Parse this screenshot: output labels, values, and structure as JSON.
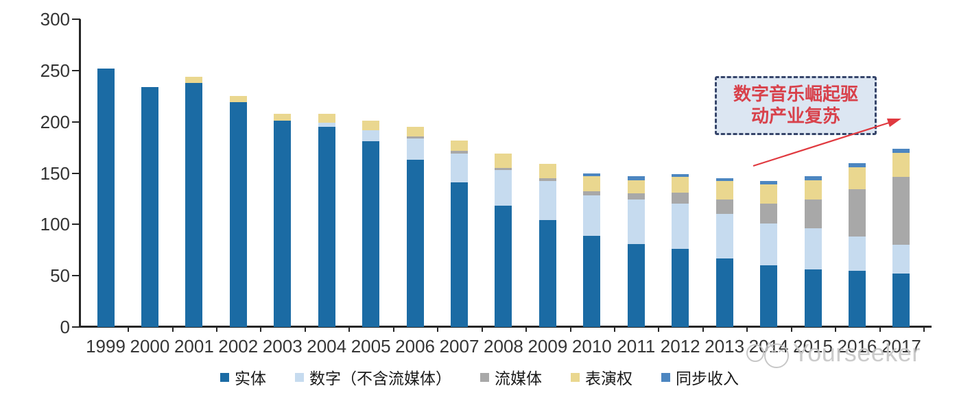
{
  "chart_data": {
    "type": "bar",
    "stacked": true,
    "title": "",
    "xlabel": "",
    "ylabel": "",
    "grid": false,
    "legend_position": "bottom",
    "ylim": [
      0,
      300
    ],
    "yticks": [
      0,
      50,
      100,
      150,
      200,
      250,
      300
    ],
    "categories": [
      "1999",
      "2000",
      "2001",
      "2002",
      "2003",
      "2004",
      "2005",
      "2006",
      "2007",
      "2008",
      "2009",
      "2010",
      "2011",
      "2012",
      "2013",
      "2014",
      "2015",
      "2016",
      "2017"
    ],
    "series": [
      {
        "key": "physical",
        "name": "实体",
        "color": "#1B6BA4",
        "values": [
          252,
          234,
          238,
          219,
          201,
          195,
          181,
          163,
          141,
          118,
          104,
          89,
          81,
          76,
          67,
          60,
          56,
          55,
          52
        ]
      },
      {
        "key": "digital-ex-streaming",
        "name": "数字（不含流媒体）",
        "color": "#C6DBEF",
        "values": [
          0,
          0,
          0,
          0,
          0,
          4,
          11,
          21,
          28,
          35,
          38,
          39,
          43,
          44,
          43,
          41,
          40,
          33,
          28
        ]
      },
      {
        "key": "streaming",
        "name": "流媒体",
        "color": "#A8A8A8",
        "values": [
          0,
          0,
          0,
          0,
          0,
          0,
          0,
          2,
          3,
          2,
          3,
          4,
          6,
          11,
          14,
          19,
          28,
          46,
          66
        ]
      },
      {
        "key": "performance-rights",
        "name": "表演权",
        "color": "#EAD78F",
        "values": [
          0,
          0,
          6,
          6,
          7,
          9,
          9,
          9,
          10,
          14,
          14,
          15,
          13,
          15,
          18,
          19,
          19,
          22,
          24
        ]
      },
      {
        "key": "sync",
        "name": "同步收入",
        "color": "#4C86C0",
        "values": [
          0,
          0,
          0,
          0,
          0,
          0,
          0,
          0,
          0,
          0,
          0,
          3,
          4,
          3,
          3,
          3,
          4,
          4,
          4
        ]
      }
    ]
  },
  "annotation": {
    "line1": "数字音乐崛起驱",
    "line2": "动产业复苏"
  },
  "watermark": {
    "text": "Yourseeker"
  },
  "colors": {
    "axis": "#262626",
    "tick_label": "#333333",
    "annotation_text": "#D8414B",
    "annotation_box_fill": "#DCE6F2",
    "annotation_box_border": "#36456A",
    "arrow": "#E0393F",
    "watermark": "#C6C6C6"
  }
}
